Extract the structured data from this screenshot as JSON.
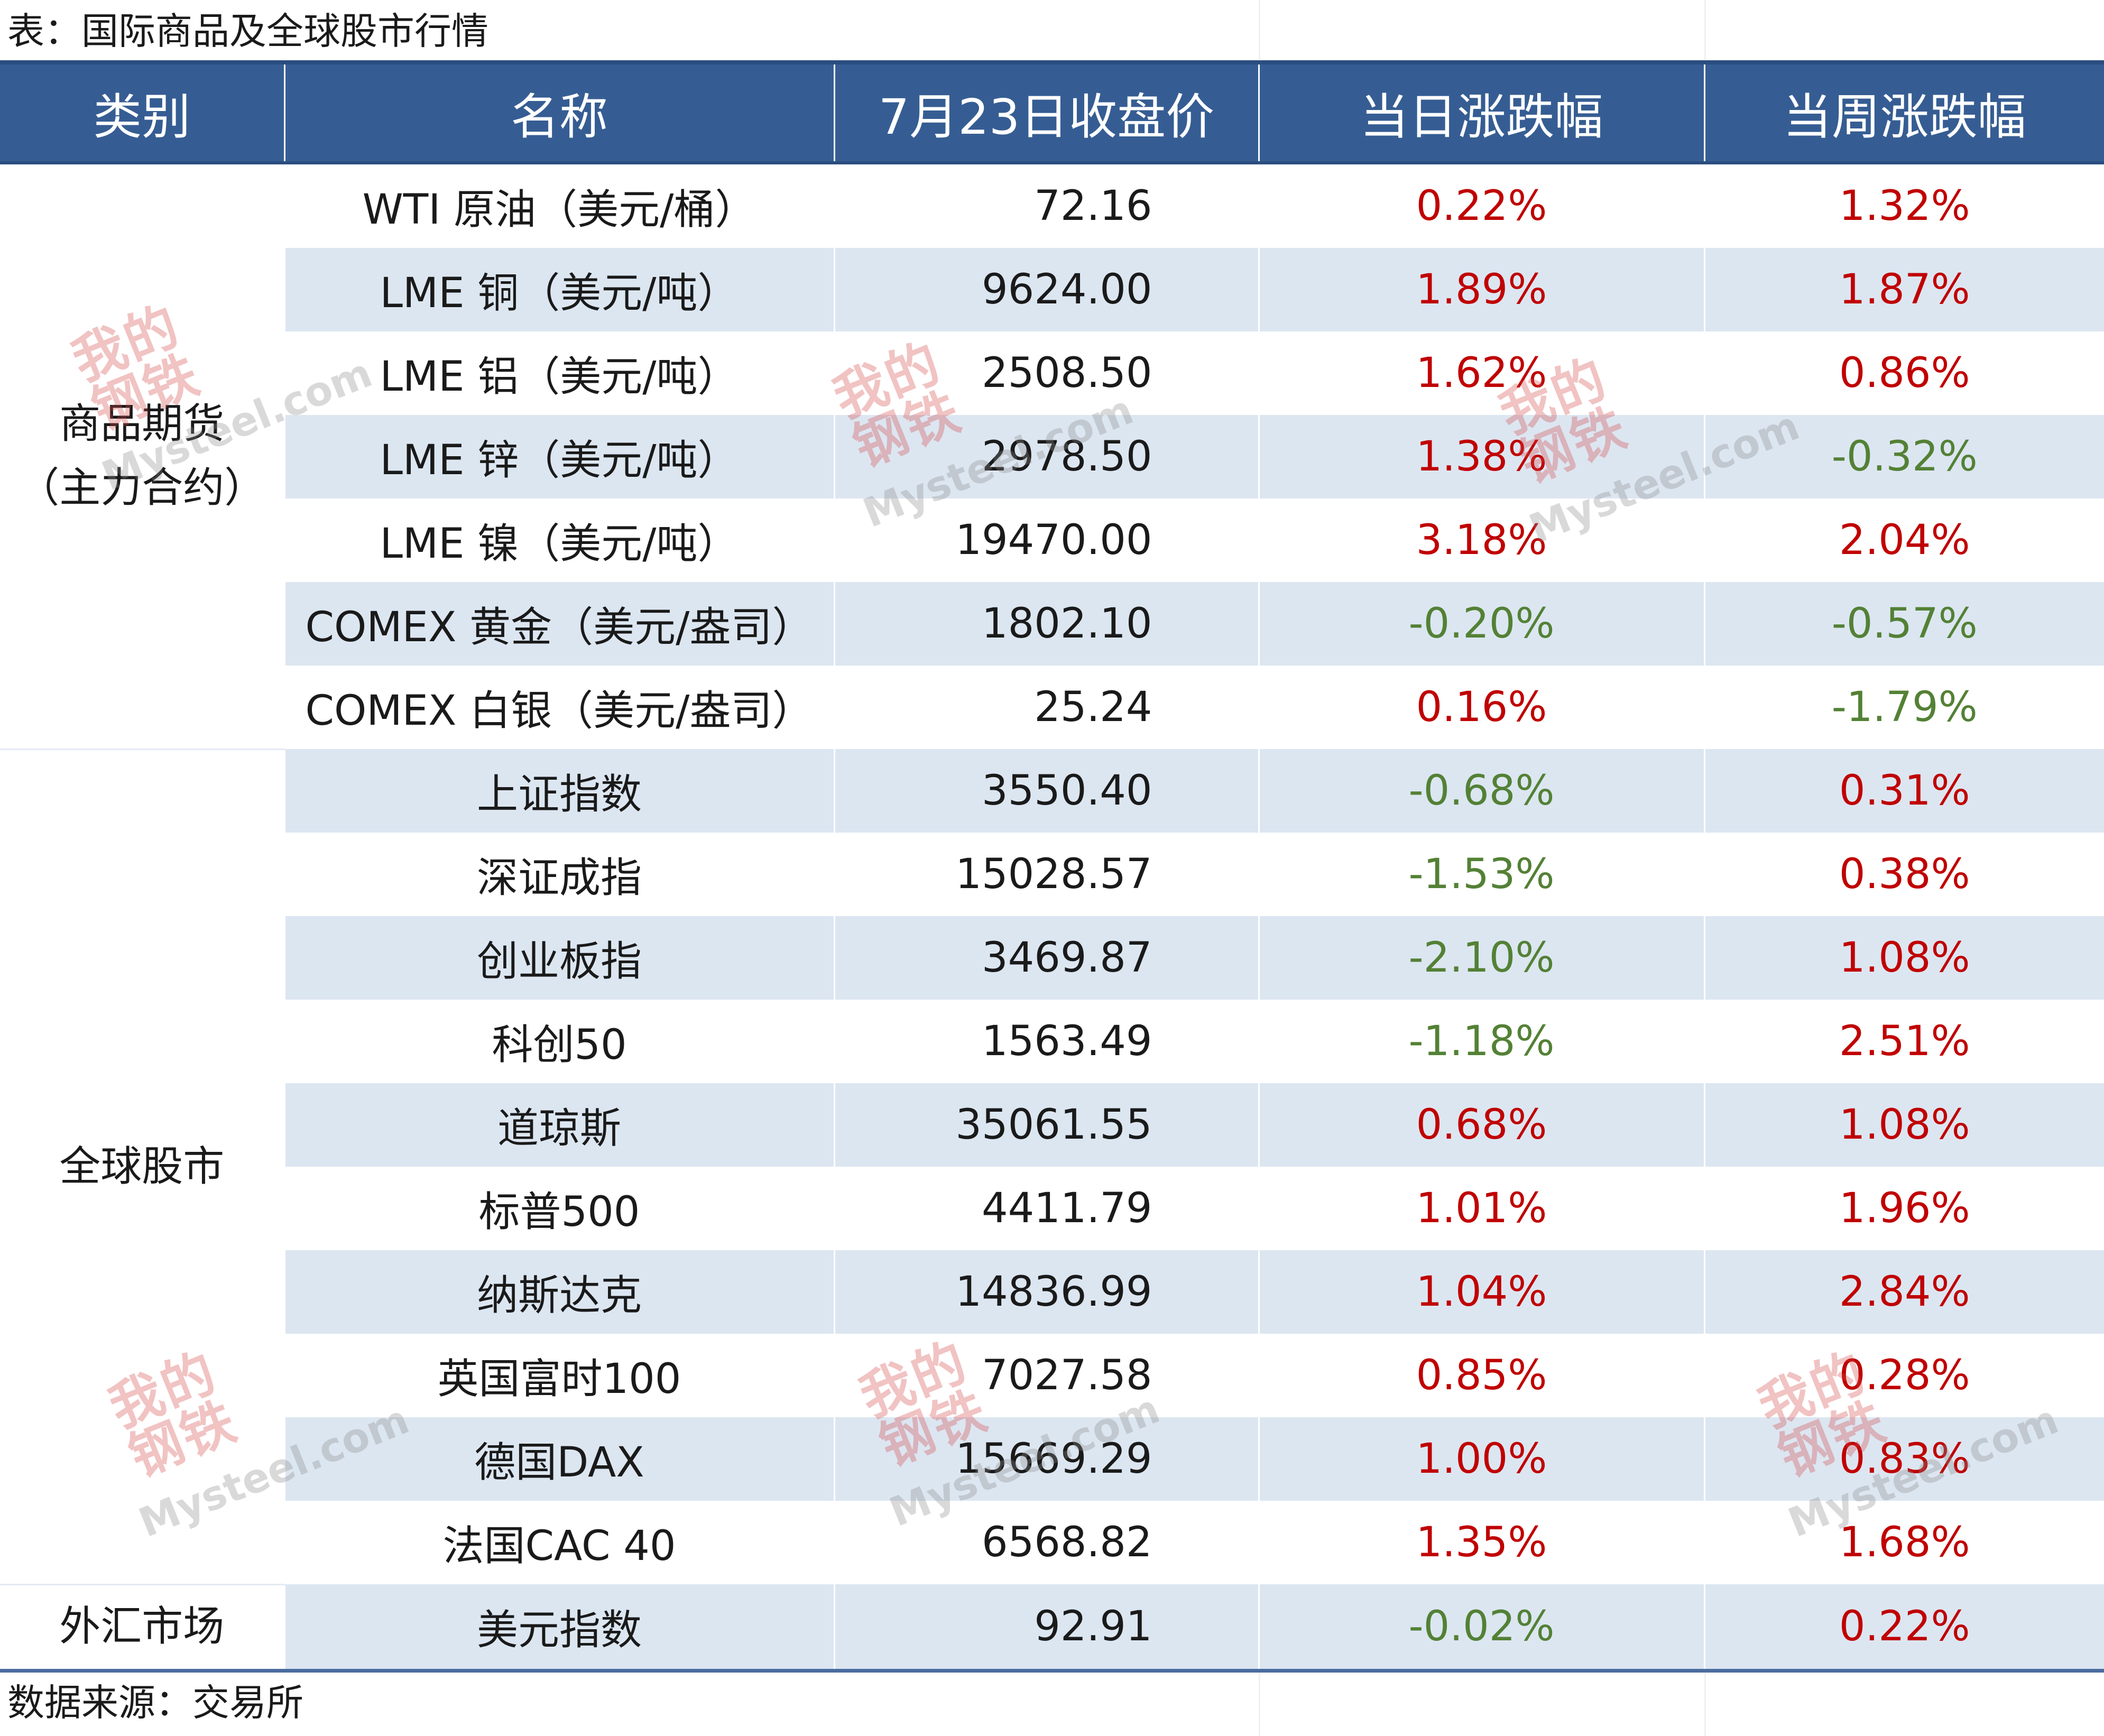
{
  "title": "表：国际商品及全球股市行情",
  "source": "数据来源：交易所",
  "headers": {
    "category": "类别",
    "name": "名称",
    "price": "7月23日收盘价",
    "daily": "当日涨跌幅",
    "weekly": "当周涨跌幅"
  },
  "categories": {
    "commodities": "商品期货\n（主力合约）",
    "stocks": "全球股市",
    "forex": "外汇市场"
  },
  "rows": [
    {
      "name": "WTI 原油（美元/桶）",
      "price": "72.16",
      "daily": "0.22%",
      "weekly": "1.32%"
    },
    {
      "name": "LME 铜（美元/吨）",
      "price": "9624.00",
      "daily": "1.89%",
      "weekly": "1.87%"
    },
    {
      "name": "LME 铝（美元/吨）",
      "price": "2508.50",
      "daily": "1.62%",
      "weekly": "0.86%"
    },
    {
      "name": "LME 锌（美元/吨）",
      "price": "2978.50",
      "daily": "1.38%",
      "weekly": "-0.32%"
    },
    {
      "name": "LME 镍（美元/吨）",
      "price": "19470.00",
      "daily": "3.18%",
      "weekly": "2.04%"
    },
    {
      "name": "COMEX 黄金（美元/盎司）",
      "price": "1802.10",
      "daily": "-0.20%",
      "weekly": "-0.57%"
    },
    {
      "name": "COMEX 白银（美元/盎司）",
      "price": "25.24",
      "daily": "0.16%",
      "weekly": "-1.79%"
    },
    {
      "name": "上证指数",
      "price": "3550.40",
      "daily": "-0.68%",
      "weekly": "0.31%"
    },
    {
      "name": "深证成指",
      "price": "15028.57",
      "daily": "-1.53%",
      "weekly": "0.38%"
    },
    {
      "name": "创业板指",
      "price": "3469.87",
      "daily": "-2.10%",
      "weekly": "1.08%"
    },
    {
      "name": "科创50",
      "price": "1563.49",
      "daily": "-1.18%",
      "weekly": "2.51%"
    },
    {
      "name": "道琼斯",
      "price": "35061.55",
      "daily": "0.68%",
      "weekly": "1.08%"
    },
    {
      "name": "标普500",
      "price": "4411.79",
      "daily": "1.01%",
      "weekly": "1.96%"
    },
    {
      "name": "纳斯达克",
      "price": "14836.99",
      "daily": "1.04%",
      "weekly": "2.84%"
    },
    {
      "name": "英国富时100",
      "price": "7027.58",
      "daily": "0.85%",
      "weekly": "0.28%"
    },
    {
      "name": "德国DAX",
      "price": "15669.29",
      "daily": "1.00%",
      "weekly": "0.83%"
    },
    {
      "name": "法国CAC 40",
      "price": "6568.82",
      "daily": "1.35%",
      "weekly": "1.68%"
    },
    {
      "name": "美元指数",
      "price": "92.91",
      "daily": "-0.02%",
      "weekly": "0.22%"
    }
  ],
  "colors": {
    "header_bg": "#365d93",
    "row_alt": "#dce6f1",
    "up": "#c00000",
    "down": "#538135"
  },
  "watermark": {
    "cn": "我的钢铁",
    "en": "Mysteel.com"
  }
}
